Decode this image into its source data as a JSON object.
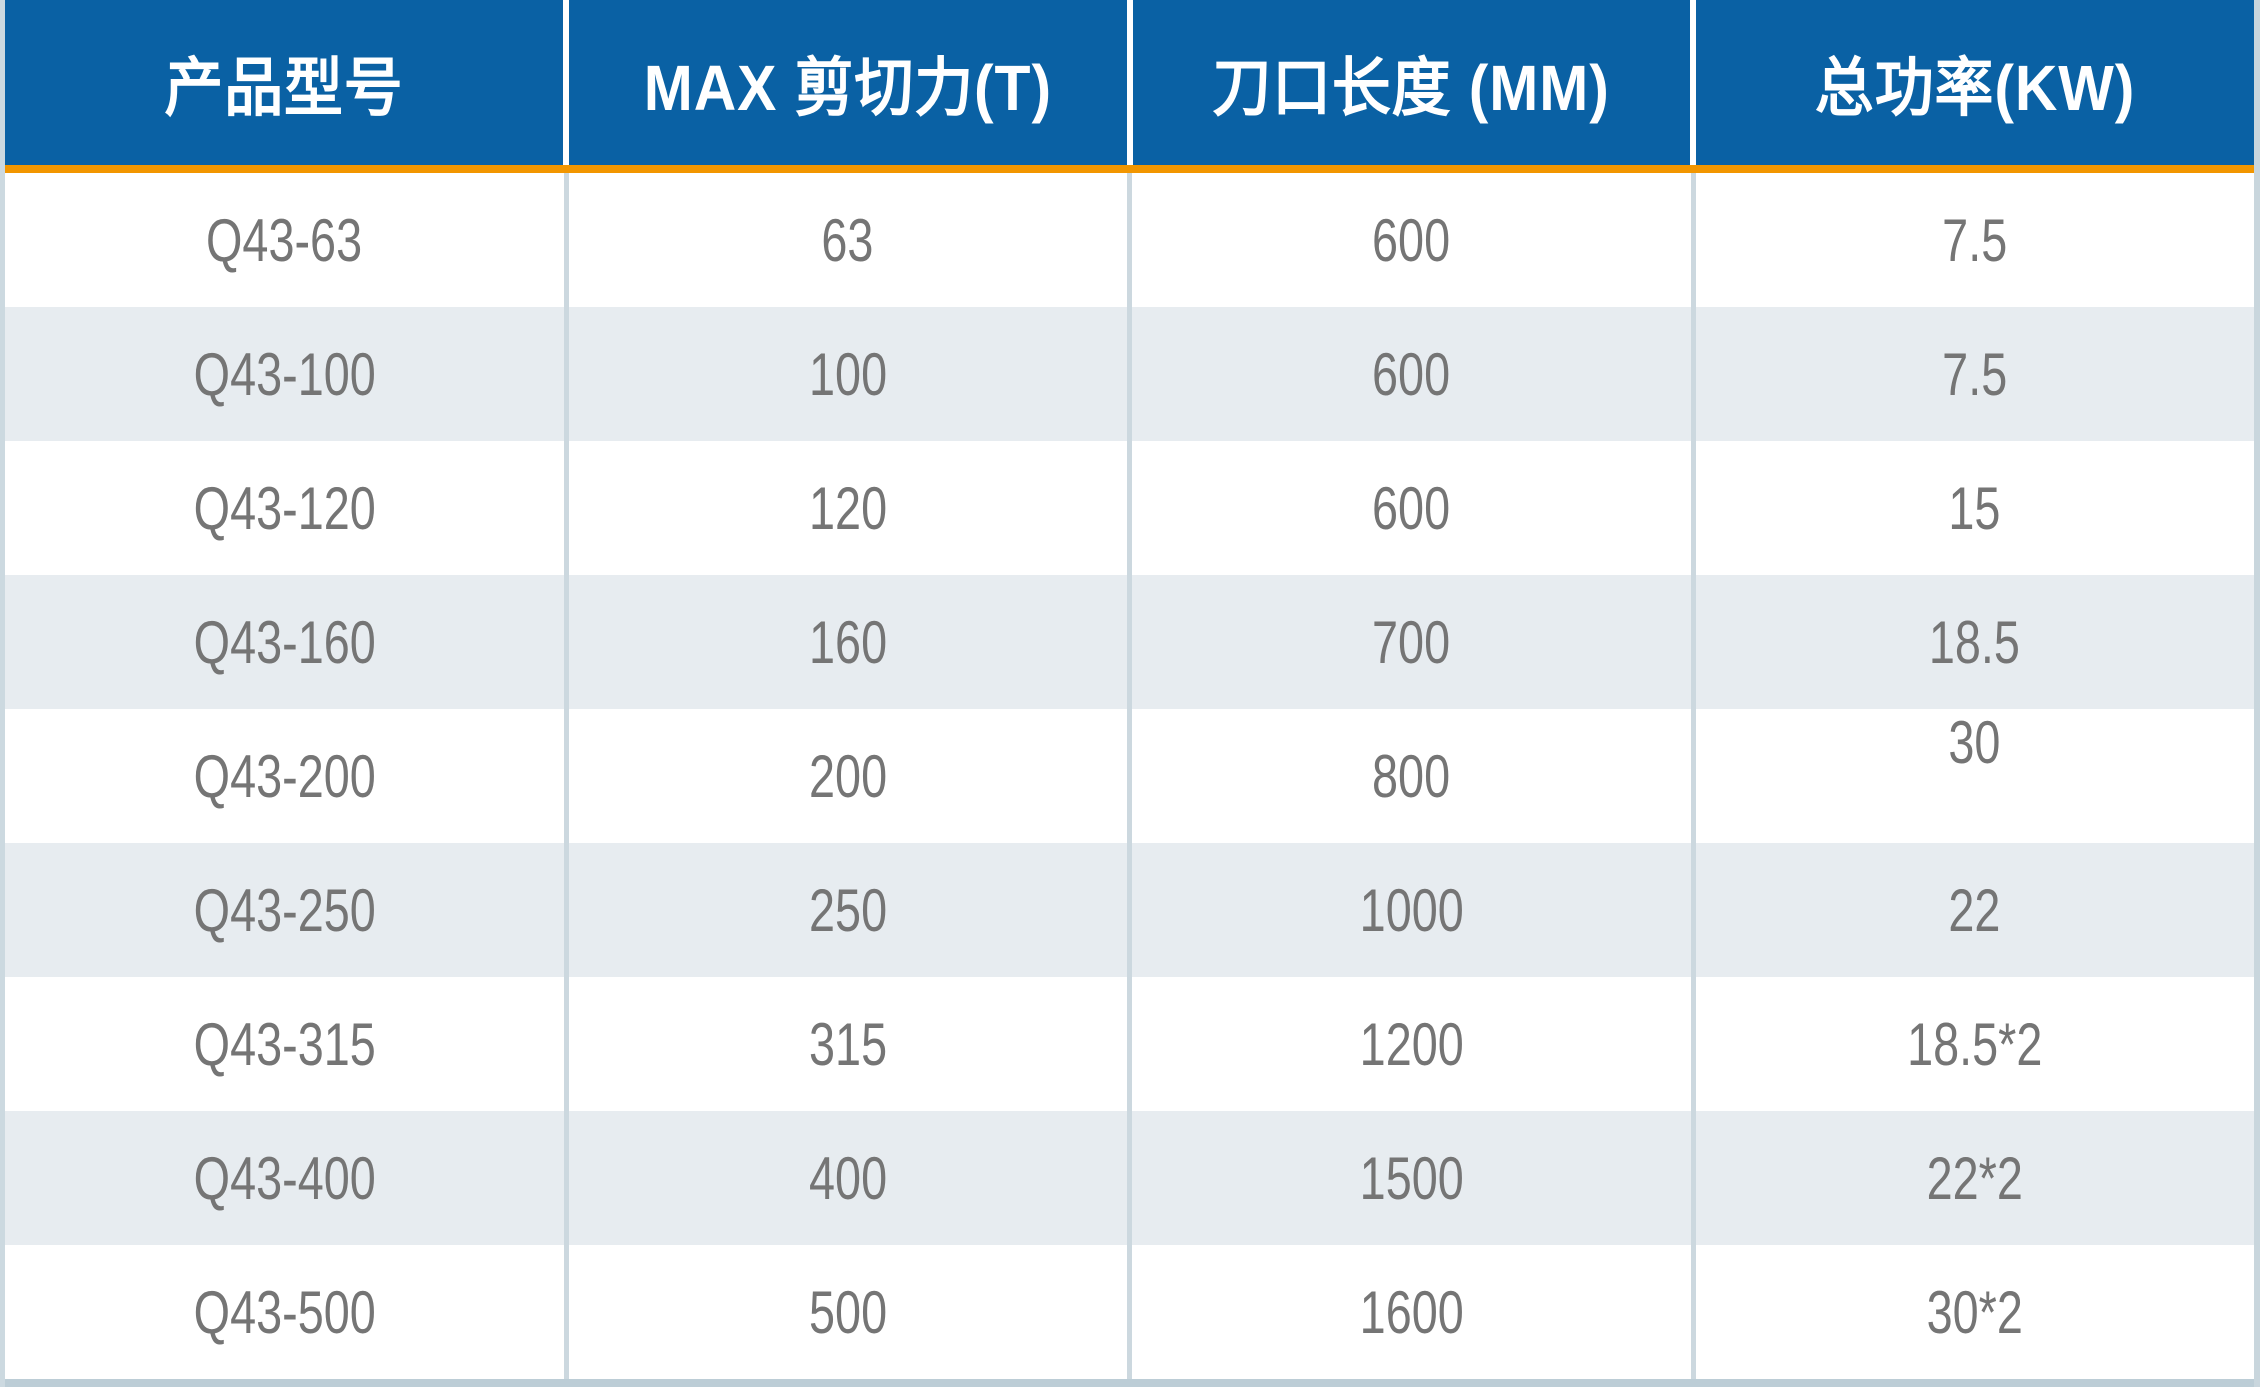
{
  "table": {
    "columns": [
      {
        "label": "产品型号"
      },
      {
        "label": "MAX 剪切力(T)"
      },
      {
        "label": "刀口长度 (MM)"
      },
      {
        "label": "总功率(KW)"
      }
    ],
    "rows": [
      [
        "Q43-63",
        "63",
        "600",
        "7.5"
      ],
      [
        "Q43-100",
        "100",
        "600",
        "7.5"
      ],
      [
        "Q43-120",
        "120",
        "600",
        "15"
      ],
      [
        "Q43-160",
        "160",
        "700",
        "18.5"
      ],
      [
        "Q43-200",
        "200",
        "800",
        "30"
      ],
      [
        "Q43-250",
        "250",
        "1000",
        "22"
      ],
      [
        "Q43-315",
        "315",
        "1200",
        "18.5*2"
      ],
      [
        "Q43-400",
        "400",
        "1500",
        "22*2"
      ],
      [
        "Q43-500",
        "500",
        "1600",
        "30*2"
      ]
    ]
  },
  "colors": {
    "header_bg": "#0A61A4",
    "header_text": "#FFFFFF",
    "accent_orange": "#F29600",
    "row_white": "#FFFFFF",
    "row_alt": "#E7ECF0",
    "cell_text": "#757575",
    "column_separator": "#CCD8DF",
    "bottom_bar": "#BCCDD6"
  }
}
